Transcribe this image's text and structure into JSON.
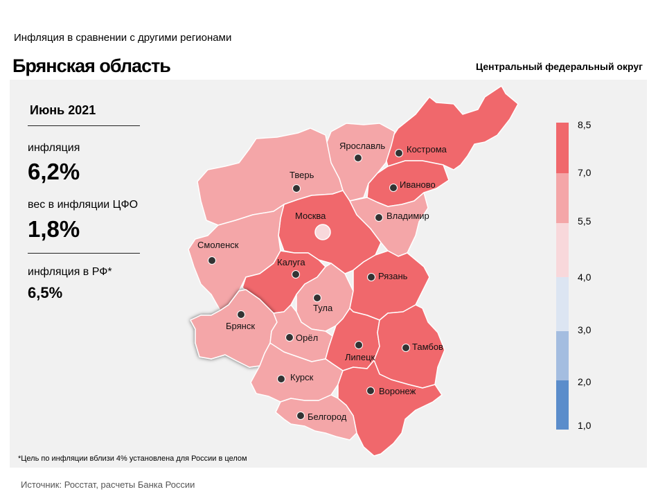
{
  "header": {
    "subtitle": "Инфляция в сравнении с другими регионами",
    "title": "Брянская область",
    "district": "Центральный федеральный округ"
  },
  "sidebar": {
    "month": "Июнь 2021",
    "inflation_label": "инфляция",
    "inflation_value": "6,2%",
    "weight_label": "вес в инфляции ЦФО",
    "weight_value": "1,8%",
    "rf_label": "инфляция в РФ*",
    "rf_value": "6,5%"
  },
  "map": {
    "selected_region": "Брянск",
    "cities": [
      "Кострома",
      "Ярославль",
      "Иваново",
      "Тверь",
      "Москва",
      "Владимир",
      "Смоленск",
      "Калуга",
      "Рязань",
      "Тула",
      "Брянск",
      "Орёл",
      "Липецк",
      "Тамбов",
      "Курск",
      "Воронеж",
      "Белгород"
    ]
  },
  "legend": {
    "ticks": [
      "8,5",
      "7,0",
      "5,5",
      "4,0",
      "3,0",
      "2,0",
      "1,0"
    ],
    "colors": [
      "#f0686c",
      "#f4a6a8",
      "#f8d8db",
      "#dce5f2",
      "#a4bde0",
      "#5b8dcb"
    ]
  },
  "footnote": "*Цель по инфляции вблизи 4% установлена для России в целом",
  "source": "Источник: Росстат, расчеты Банка России"
}
